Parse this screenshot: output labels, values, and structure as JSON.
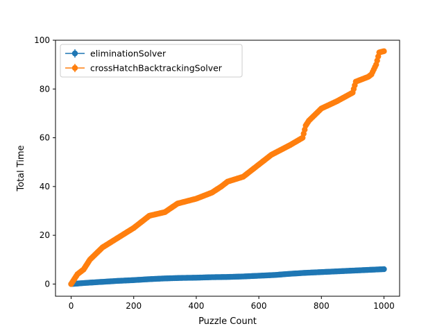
{
  "chart_data": {
    "type": "line",
    "title": "",
    "xlabel": "Puzzle Count",
    "ylabel": "Total Time",
    "xlim": [
      -50,
      1050
    ],
    "ylim": [
      -5,
      100
    ],
    "xticks": [
      0,
      200,
      400,
      600,
      800,
      1000
    ],
    "yticks": [
      0,
      20,
      40,
      60,
      80,
      100
    ],
    "grid": false,
    "legend_position": "top-left",
    "markers": "circle",
    "error_bars": true,
    "series": [
      {
        "name": "eliminationSolver",
        "color": "#1f77b4",
        "x": [
          0,
          50,
          100,
          150,
          200,
          250,
          300,
          350,
          400,
          450,
          500,
          550,
          600,
          650,
          700,
          750,
          800,
          850,
          900,
          950,
          1000
        ],
        "y": [
          0,
          0.5,
          0.9,
          1.3,
          1.6,
          2.0,
          2.3,
          2.5,
          2.6,
          2.8,
          2.9,
          3.1,
          3.4,
          3.7,
          4.2,
          4.6,
          4.9,
          5.2,
          5.5,
          5.8,
          6.1
        ]
      },
      {
        "name": "crossHatchBacktrackingSolver",
        "color": "#ff7f0e",
        "x": [
          0,
          10,
          20,
          40,
          50,
          60,
          100,
          150,
          200,
          250,
          300,
          340,
          400,
          450,
          480,
          500,
          550,
          600,
          640,
          700,
          740,
          750,
          760,
          800,
          850,
          900,
          910,
          950,
          960,
          975,
          985,
          1000
        ],
        "y": [
          0,
          2,
          4,
          6,
          8,
          10,
          15,
          19,
          23,
          28,
          29.5,
          33,
          35,
          37.5,
          40,
          42,
          44,
          49,
          53,
          57,
          60,
          65,
          67,
          72,
          75,
          78.5,
          83,
          85,
          86,
          90,
          95,
          95.5
        ]
      }
    ]
  }
}
